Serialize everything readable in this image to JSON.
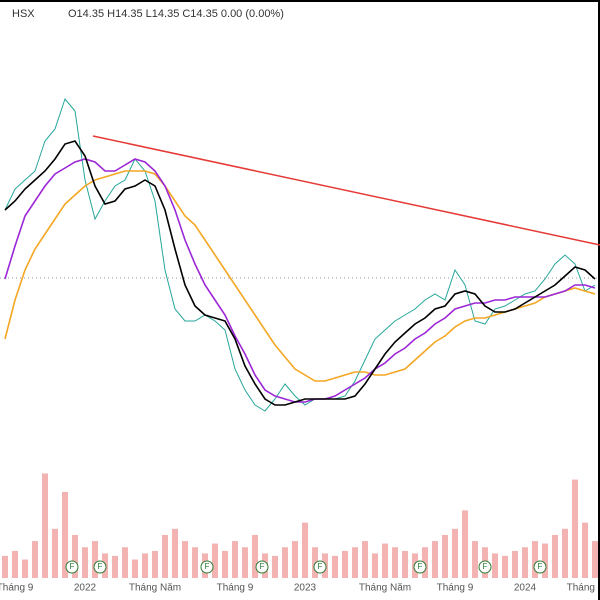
{
  "header": {
    "symbol": "HSX",
    "ohlc": "O14.35 H14.35 L14.35 C14.35 0.00 (0.00%)"
  },
  "markers": [
    "F",
    "F",
    "F",
    "F",
    "F",
    "F",
    "F",
    "F"
  ],
  "chart_data": [
    {
      "type": "line",
      "categories": [
        null,
        "Tháng 9",
        null,
        null,
        null,
        null,
        null,
        null,
        "2022",
        null,
        null,
        null,
        null,
        null,
        null,
        "Tháng Năm",
        null,
        null,
        null,
        null,
        null,
        null,
        null,
        "Tháng 9",
        null,
        null,
        null,
        null,
        null,
        null,
        "2023",
        null,
        null,
        null,
        null,
        null,
        null,
        null,
        "Tháng Năm",
        null,
        null,
        null,
        null,
        null,
        null,
        "Tháng 9",
        null,
        null,
        null,
        null,
        null,
        null,
        "2024",
        null,
        null,
        null,
        null,
        null,
        null,
        "Tháng"
      ],
      "ylim": [
        8.6,
        22.6
      ],
      "series": [
        {
          "color": "#26a69a",
          "values": [
            16.6,
            17.3,
            17.6,
            17.9,
            18.9,
            19.3,
            20.3,
            19.9,
            17.6,
            16.3,
            16.9,
            17.4,
            17.6,
            18.3,
            17.9,
            16.9,
            14.6,
            13.3,
            12.9,
            12.9,
            13.1,
            12.9,
            12.6,
            11.3,
            10.6,
            10.1,
            9.9,
            10.3,
            10.8,
            10.4,
            10.1,
            10.3,
            10.3,
            10.3,
            10.4,
            10.9,
            11.6,
            12.3,
            12.6,
            12.9,
            13.1,
            13.3,
            13.6,
            13.8,
            13.6,
            14.6,
            14.1,
            12.9,
            12.8,
            13.3,
            13.4,
            13.6,
            13.8,
            13.9,
            14.3,
            14.8,
            15.1,
            14.8,
            13.9,
            14.1
          ]
        },
        {
          "color": "#f5a623",
          "values": [
            12.3,
            13.6,
            14.6,
            15.3,
            15.8,
            16.3,
            16.8,
            17.1,
            17.4,
            17.6,
            17.7,
            17.8,
            17.9,
            17.9,
            17.9,
            17.8,
            17.4,
            16.9,
            16.4,
            16.1,
            15.6,
            15.1,
            14.6,
            14.1,
            13.6,
            13.1,
            12.6,
            12.1,
            11.7,
            11.3,
            11.1,
            10.9,
            10.9,
            11.0,
            11.1,
            11.2,
            11.2,
            11.1,
            11.1,
            11.2,
            11.3,
            11.6,
            11.9,
            12.2,
            12.4,
            12.7,
            12.9,
            13.0,
            13.0,
            13.1,
            13.2,
            13.3,
            13.4,
            13.5,
            13.7,
            13.8,
            13.9,
            14.0,
            13.9,
            13.8
          ]
        },
        {
          "color": "#9c27d6",
          "values": [
            14.3,
            15.4,
            16.4,
            16.9,
            17.4,
            17.8,
            18.0,
            18.2,
            18.3,
            18.2,
            17.9,
            17.9,
            18.1,
            18.3,
            18.2,
            17.9,
            17.4,
            16.6,
            15.6,
            14.8,
            14.1,
            13.6,
            13.1,
            12.4,
            11.8,
            11.1,
            10.6,
            10.4,
            10.3,
            10.2,
            10.2,
            10.3,
            10.3,
            10.4,
            10.6,
            10.8,
            11.0,
            11.3,
            11.5,
            11.8,
            12.0,
            12.3,
            12.5,
            12.8,
            13.0,
            13.3,
            13.4,
            13.5,
            13.5,
            13.6,
            13.6,
            13.7,
            13.7,
            13.7,
            13.7,
            13.8,
            13.9,
            14.1,
            14.1,
            14.0
          ]
        },
        {
          "color": "#000000",
          "values": [
            16.6,
            16.9,
            17.3,
            17.6,
            17.9,
            18.3,
            18.8,
            18.9,
            18.4,
            17.4,
            16.8,
            16.9,
            17.3,
            17.4,
            17.6,
            17.4,
            16.6,
            15.3,
            14.1,
            13.4,
            13.1,
            13.0,
            12.9,
            12.3,
            11.4,
            10.8,
            10.3,
            10.1,
            10.1,
            10.2,
            10.3,
            10.3,
            10.3,
            10.3,
            10.3,
            10.4,
            10.8,
            11.3,
            11.8,
            12.2,
            12.5,
            12.8,
            13.0,
            13.3,
            13.4,
            13.8,
            13.9,
            13.8,
            13.4,
            13.2,
            13.2,
            13.3,
            13.5,
            13.7,
            13.9,
            14.1,
            14.4,
            14.7,
            14.6,
            14.3
          ]
        }
      ]
    },
    {
      "type": "bar",
      "color": "#f3b3b3",
      "ylim": [
        0,
        100
      ],
      "values": [
        18,
        22,
        15,
        30,
        85,
        40,
        70,
        35,
        25,
        30,
        20,
        18,
        25,
        15,
        20,
        22,
        35,
        40,
        30,
        25,
        20,
        28,
        22,
        30,
        25,
        35,
        20,
        18,
        25,
        30,
        45,
        25,
        20,
        18,
        22,
        25,
        30,
        20,
        28,
        25,
        22,
        20,
        25,
        30,
        35,
        40,
        55,
        30,
        25,
        20,
        18,
        22,
        25,
        30,
        28,
        35,
        40,
        80,
        45,
        30
      ]
    }
  ]
}
